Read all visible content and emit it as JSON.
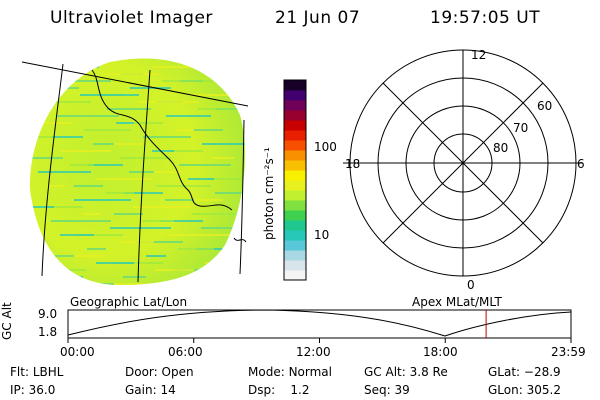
{
  "header": {
    "instrument": "Ultraviolet Imager",
    "date": "21 Jun 07",
    "time": "19:57:05 UT"
  },
  "colorbar": {
    "unit_label": "photon cm⁻²s⁻¹",
    "ticks": [
      "100",
      "10"
    ],
    "colors": [
      "#f4f4f4",
      "#d8e4ec",
      "#a8d8e4",
      "#58c8d8",
      "#28c8b8",
      "#20c890",
      "#40d050",
      "#80e040",
      "#c0f030",
      "#e8f020",
      "#f8f000",
      "#f8c000",
      "#f89000",
      "#f85000",
      "#e82000",
      "#c80000",
      "#980030",
      "#700058",
      "#400070",
      "#180028"
    ]
  },
  "polar": {
    "labels": {
      "top": "12",
      "bottom": "0",
      "left": "18",
      "right": "6"
    },
    "lat_labels": [
      "60",
      "70",
      "80"
    ]
  },
  "timeline": {
    "ylabel": "GC Alt",
    "yticks": [
      "9.0",
      "1.8"
    ],
    "left_caption": "Geographic Lat/Lon",
    "right_caption": "Apex MLat/MLT",
    "xticks": [
      "00:00",
      "06:00",
      "12:00",
      "18:00",
      "23:59"
    ],
    "marker_hour": 19.95
  },
  "footer": {
    "row1": [
      {
        "label": "Flt:",
        "value": "LBHL"
      },
      {
        "label": "Door:",
        "value": "Open"
      },
      {
        "label": "Mode:",
        "value": "Normal"
      },
      {
        "label": "GC Alt:",
        "value": "3.8 Re"
      },
      {
        "label": "GLat:",
        "value": "−28.9"
      }
    ],
    "row2": [
      {
        "label": "IP:",
        "value": "36.0"
      },
      {
        "label": "Gain:",
        "value": "14"
      },
      {
        "label": "Dsp:",
        "value": "1.2"
      },
      {
        "label": "Seq:",
        "value": "39"
      },
      {
        "label": "GLon:",
        "value": "305.2"
      }
    ]
  }
}
